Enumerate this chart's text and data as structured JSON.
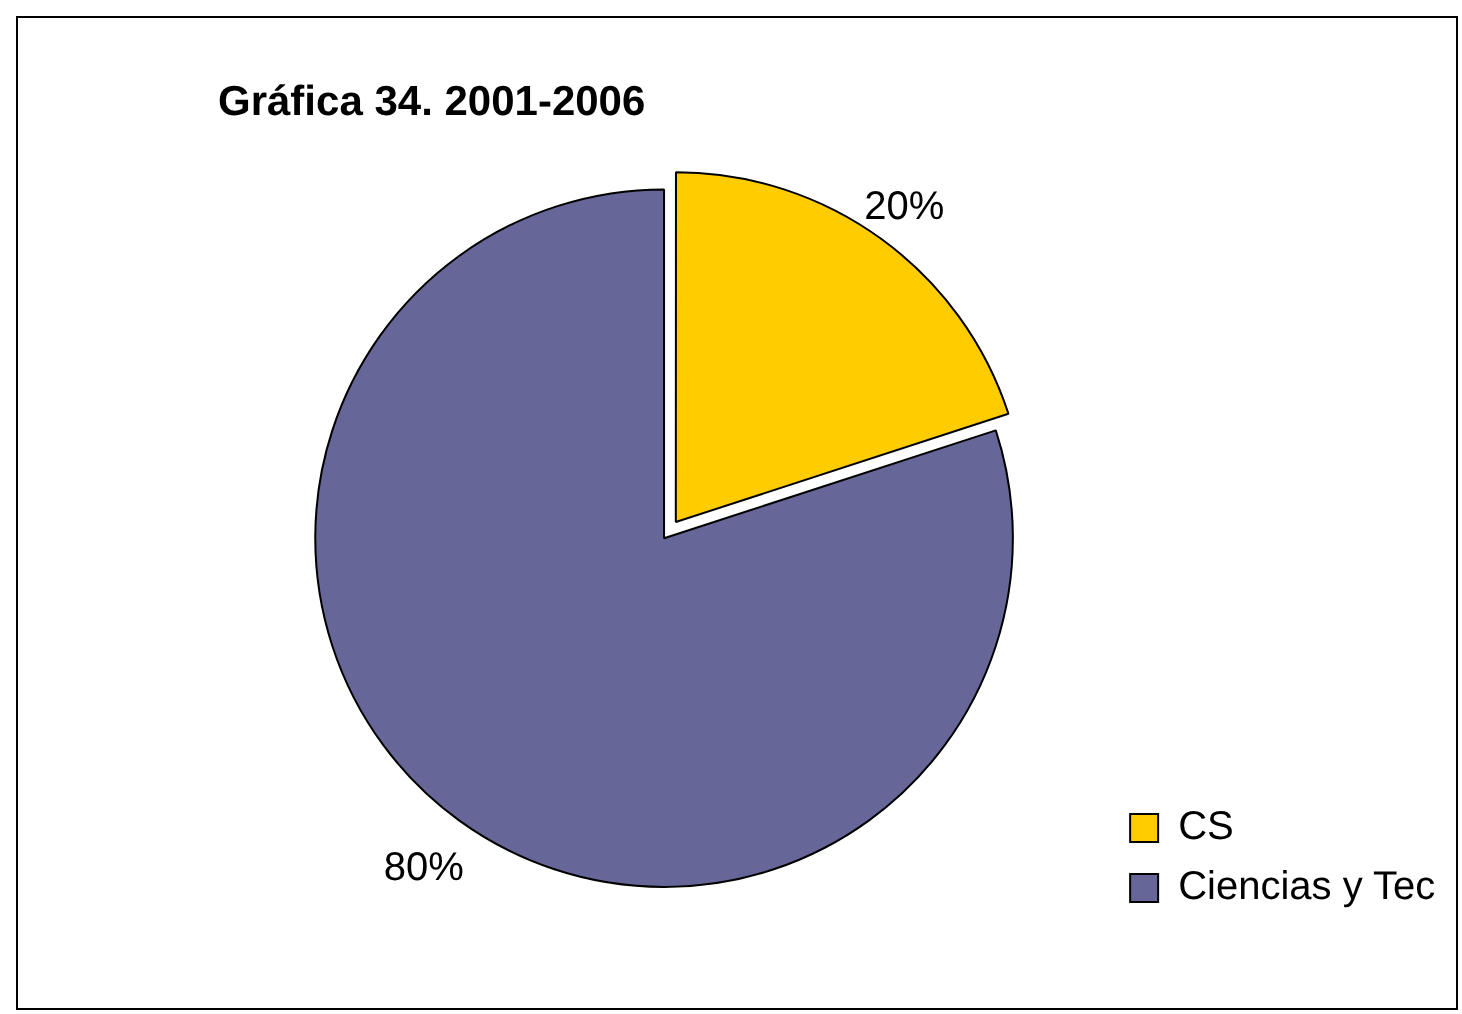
{
  "chart_data": {
    "type": "pie",
    "title": "Gráfica 34. 2001-2006",
    "categories": [
      "CS",
      "Ciencias y Tec"
    ],
    "values": [
      20,
      80
    ],
    "colors": [
      "#ffcc00",
      "#666699"
    ],
    "value_labels": [
      "20%",
      "80%"
    ],
    "legend": "bottom right"
  }
}
